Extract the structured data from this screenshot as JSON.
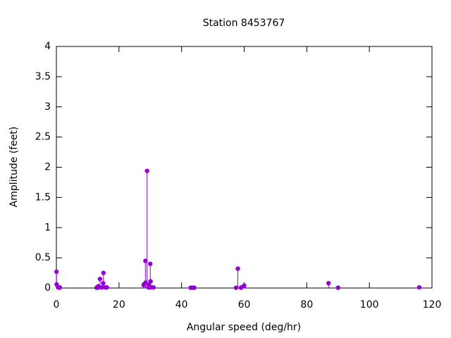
{
  "chart_data": {
    "type": "stem",
    "title": "Station 8453767",
    "x_label": "Angular speed (deg/hr)",
    "y_label": "Amplitude (feet)",
    "color": "#9400d3",
    "x": [
      0.041,
      0.082,
      0.544,
      1.016,
      1.098,
      12.854,
      12.927,
      13.399,
      13.471,
      13.943,
      14.497,
      14.959,
      15.041,
      15.585,
      16.139,
      27.895,
      27.968,
      28.44,
      28.513,
      28.984,
      29.456,
      29.528,
      29.959,
      30.0,
      30.041,
      30.082,
      31.016,
      42.927,
      43.476,
      44.025,
      57.424,
      57.968,
      58.984,
      59.066,
      60.0,
      86.952,
      90.0,
      115.936
    ],
    "values": [
      0.27,
      0.06,
      0.01,
      0.005,
      0.01,
      0.005,
      0.005,
      0.03,
      0.01,
      0.15,
      0.01,
      0.08,
      0.25,
      0.01,
      0.01,
      0.05,
      0.06,
      0.45,
      0.09,
      1.94,
      0.01,
      0.05,
      0.02,
      0.4,
      0.01,
      0.11,
      0.01,
      0.005,
      0.005,
      0.005,
      0.005,
      0.32,
      0.005,
      0.01,
      0.04,
      0.08,
      0.005,
      0.01
    ],
    "xlim": [
      0,
      120
    ],
    "xticks": [
      0,
      20,
      40,
      60,
      80,
      100,
      120
    ],
    "ylim": [
      0,
      4
    ],
    "yticks": [
      0,
      0.5,
      1,
      1.5,
      2,
      2.5,
      3,
      3.5,
      4
    ],
    "grid": false
  }
}
